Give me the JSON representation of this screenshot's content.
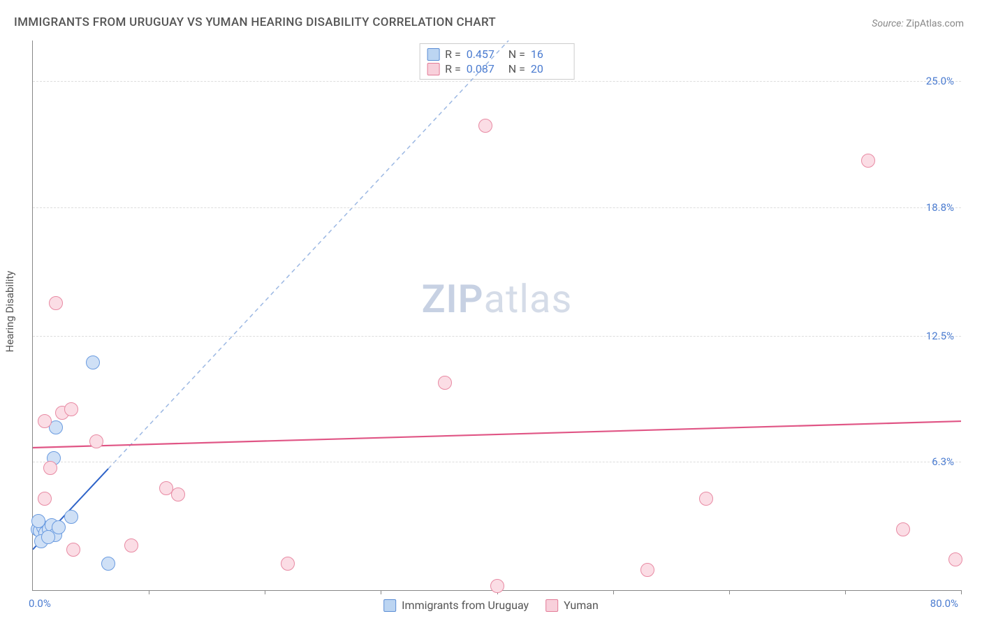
{
  "title": "IMMIGRANTS FROM URUGUAY VS YUMAN HEARING DISABILITY CORRELATION CHART",
  "source_label": "Source:",
  "source_value": "ZipAtlas.com",
  "yaxis_label": "Hearing Disability",
  "watermark_zip": "ZIP",
  "watermark_atlas": "atlas",
  "chart": {
    "type": "scatter",
    "x_min": 0.0,
    "x_max": 80.0,
    "y_min": 0.0,
    "y_max": 27.0,
    "x_min_label": "0.0%",
    "x_max_label": "80.0%",
    "yticks": [
      {
        "v": 6.3,
        "label": "6.3%"
      },
      {
        "v": 12.5,
        "label": "12.5%"
      },
      {
        "v": 18.8,
        "label": "18.8%"
      },
      {
        "v": 25.0,
        "label": "25.0%"
      }
    ],
    "xtick_positions": [
      10,
      20,
      30,
      40,
      50,
      60,
      70,
      80
    ],
    "background_color": "#ffffff",
    "grid_color": "#dddddd",
    "axis_color": "#888888",
    "tick_label_color": "#4a7bd0",
    "marker_radius": 10,
    "marker_border_width": 1.2,
    "series": [
      {
        "key": "uruguay",
        "label": "Immigrants from Uruguay",
        "fill": "#cfe0f6",
        "stroke": "#6a9be0",
        "swatch_fill": "#bcd5f2",
        "swatch_border": "#5a8cd4",
        "trend": {
          "type": "line+dash",
          "solid_color": "#2e63c8",
          "dash_color": "#9cb8e3",
          "width": 2,
          "x1": 0,
          "y1": 2.0,
          "x2": 41,
          "y2": 27.0,
          "solid_to_x": 6.5
        },
        "R": "0.457",
        "N": "16",
        "points": [
          {
            "x": 0.4,
            "y": 3.0
          },
          {
            "x": 0.6,
            "y": 2.9
          },
          {
            "x": 0.9,
            "y": 3.1
          },
          {
            "x": 1.1,
            "y": 2.8
          },
          {
            "x": 1.4,
            "y": 3.0
          },
          {
            "x": 1.6,
            "y": 3.2
          },
          {
            "x": 1.9,
            "y": 2.7
          },
          {
            "x": 2.2,
            "y": 3.1
          },
          {
            "x": 0.7,
            "y": 2.4
          },
          {
            "x": 1.3,
            "y": 2.6
          },
          {
            "x": 3.3,
            "y": 3.6
          },
          {
            "x": 2.0,
            "y": 8.0
          },
          {
            "x": 1.8,
            "y": 6.5
          },
          {
            "x": 5.2,
            "y": 11.2
          },
          {
            "x": 6.5,
            "y": 1.3
          },
          {
            "x": 0.5,
            "y": 3.4
          }
        ]
      },
      {
        "key": "yuman",
        "label": "Yuman",
        "fill": "#fbdde5",
        "stroke": "#e88aa3",
        "swatch_fill": "#f8d0db",
        "swatch_border": "#e37b97",
        "trend": {
          "type": "line",
          "solid_color": "#e05585",
          "width": 2.2,
          "x1": 0,
          "y1": 7.0,
          "x2": 80,
          "y2": 8.3
        },
        "R": "0.087",
        "N": "20",
        "points": [
          {
            "x": 2.0,
            "y": 14.1
          },
          {
            "x": 5.5,
            "y": 7.3
          },
          {
            "x": 2.5,
            "y": 8.7
          },
          {
            "x": 1.0,
            "y": 8.3
          },
          {
            "x": 3.3,
            "y": 8.9
          },
          {
            "x": 1.0,
            "y": 4.5
          },
          {
            "x": 3.5,
            "y": 2.0
          },
          {
            "x": 8.5,
            "y": 2.2
          },
          {
            "x": 11.5,
            "y": 5.0
          },
          {
            "x": 12.5,
            "y": 4.7
          },
          {
            "x": 22.0,
            "y": 1.3
          },
          {
            "x": 35.5,
            "y": 10.2
          },
          {
            "x": 39.0,
            "y": 22.8
          },
          {
            "x": 40.0,
            "y": 0.2
          },
          {
            "x": 53.0,
            "y": 1.0
          },
          {
            "x": 58.0,
            "y": 4.5
          },
          {
            "x": 72.0,
            "y": 21.1
          },
          {
            "x": 75.0,
            "y": 3.0
          },
          {
            "x": 79.5,
            "y": 1.5
          },
          {
            "x": 1.5,
            "y": 6.0
          }
        ]
      }
    ]
  },
  "legend_top": {
    "R_label": "R =",
    "N_label": "N ="
  },
  "legend_bottom_labels": {
    "uruguay": "Immigrants from Uruguay",
    "yuman": "Yuman"
  }
}
